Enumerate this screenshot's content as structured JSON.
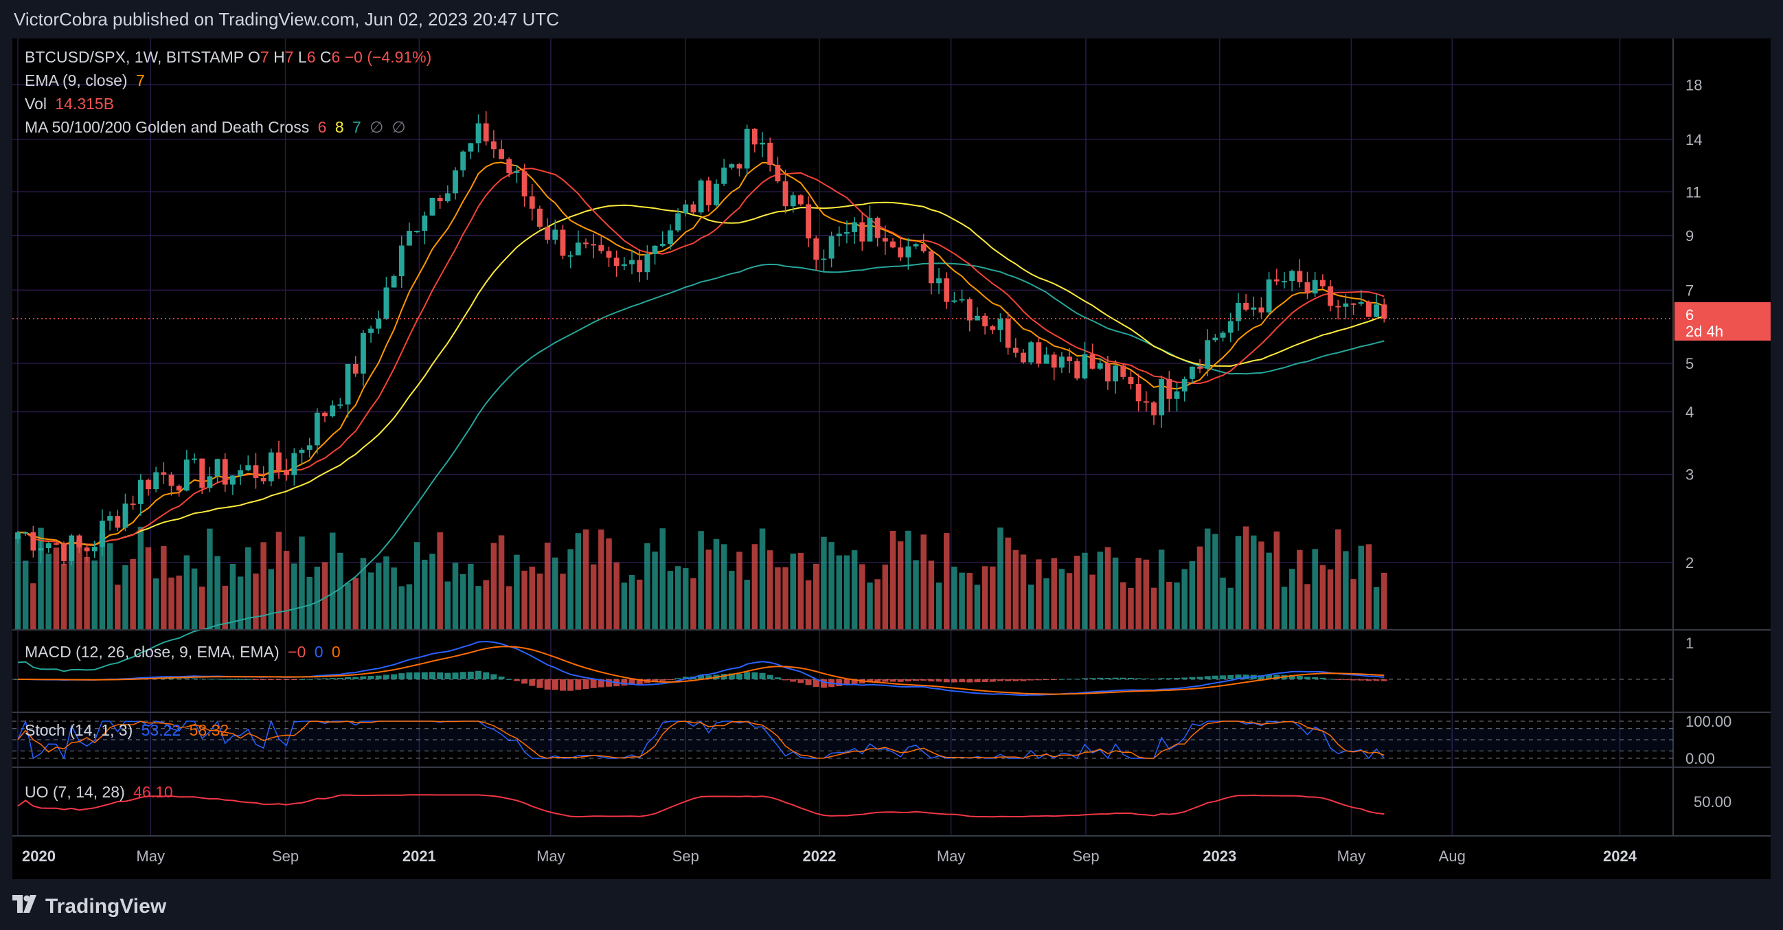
{
  "header": {
    "published": "VictorCobra published on TradingView.com, Jun 02, 2023 20:47 UTC"
  },
  "footer": {
    "brand": "TradingView"
  },
  "legend": {
    "symbol": "BTCUSD/SPX, 1W, BITSTAMP",
    "ohlc": [
      {
        "k": "O",
        "v": "7"
      },
      {
        "k": "H",
        "v": "7"
      },
      {
        "k": "L",
        "v": "6"
      },
      {
        "k": "C",
        "v": "6"
      }
    ],
    "change": "−0 (−4.91%)",
    "ema_label": "EMA (9, close)",
    "ema_value": "7",
    "vol_label": "Vol",
    "vol_value": "14.315B",
    "ma_label": "MA 50/100/200 Golden and Death Cross",
    "ma_values": [
      "6",
      "8",
      "7",
      "∅",
      "∅"
    ]
  },
  "price_axis": {
    "ticks": [
      "18",
      "14",
      "11",
      "9",
      "7",
      "5",
      "4",
      "3",
      "2"
    ],
    "last_price": "6",
    "countdown": "2d 4h"
  },
  "time_axis": {
    "labels": [
      "2020",
      "May",
      "Sep",
      "2021",
      "May",
      "Sep",
      "2022",
      "May",
      "Sep",
      "2023",
      "May",
      "Aug",
      "2024"
    ]
  },
  "panes": {
    "macd": {
      "label": "MACD (12, 26, close, 9, EMA, EMA)",
      "values": [
        "−0",
        "0",
        "0"
      ],
      "ticks": [
        "1"
      ]
    },
    "stoch": {
      "label": "Stoch (14, 1, 3)",
      "values": [
        "53.22",
        "58.32"
      ],
      "ticks": [
        "100.00",
        "0.00"
      ]
    },
    "uo": {
      "label": "UO (7, 14, 28)",
      "value": "46.10",
      "ticks": [
        "50.00"
      ]
    }
  },
  "colors": {
    "bg": "#000000",
    "up": "#26a69a",
    "down": "#ef5350",
    "ema": "#ff9800",
    "ma50": "#f44336",
    "ma100": "#ffeb3b",
    "ma200": "#26a69a",
    "grid": "#2a1a4a",
    "macd": "#2962ff",
    "signal": "#ff6d00",
    "stochk": "#2962ff",
    "stochd": "#ff6d00",
    "uo": "#f23645"
  },
  "chart_data": {
    "type": "candlestick",
    "title": "BTCUSD/SPX, 1W, BITSTAMP",
    "y_scale": "log",
    "ylim": [
      1.5,
      20
    ],
    "x_range": [
      "2020-01",
      "2024-02"
    ],
    "weekly_close_anchors": [
      {
        "date": "2020-01",
        "close": 2.3
      },
      {
        "date": "2020-03",
        "close": 2.1
      },
      {
        "date": "2020-05",
        "close": 3.0
      },
      {
        "date": "2020-07",
        "close": 3.0
      },
      {
        "date": "2020-09",
        "close": 3.1
      },
      {
        "date": "2020-11",
        "close": 4.8
      },
      {
        "date": "2021-01",
        "close": 10.0
      },
      {
        "date": "2021-03",
        "close": 14.5
      },
      {
        "date": "2021-05",
        "close": 9.0
      },
      {
        "date": "2021-07",
        "close": 7.5
      },
      {
        "date": "2021-09",
        "close": 10.0
      },
      {
        "date": "2021-11",
        "close": 14.0
      },
      {
        "date": "2022-01",
        "close": 8.5
      },
      {
        "date": "2022-03",
        "close": 9.5
      },
      {
        "date": "2022-05",
        "close": 7.0
      },
      {
        "date": "2022-07",
        "close": 5.5
      },
      {
        "date": "2022-09",
        "close": 5.0
      },
      {
        "date": "2022-11",
        "close": 4.2
      },
      {
        "date": "2023-01",
        "close": 5.8
      },
      {
        "date": "2023-03",
        "close": 7.3
      },
      {
        "date": "2023-05",
        "close": 6.3
      },
      {
        "date": "2023-06",
        "close": 6.0
      }
    ],
    "ema9_last": 7,
    "ma50_last": 6,
    "ma100_last": 8,
    "ma200_last": 7
  }
}
